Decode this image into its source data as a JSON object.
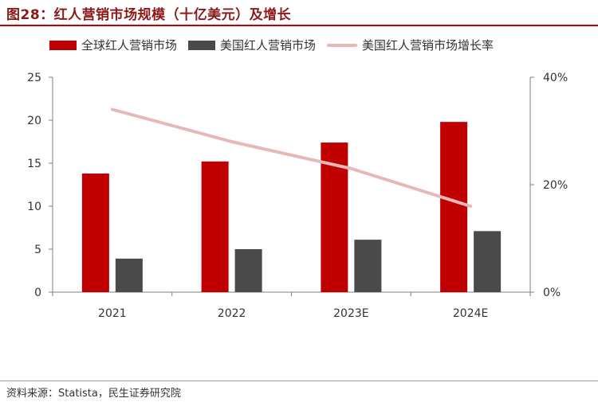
{
  "title": "图28：红人营销市场规模（十亿美元）及增长",
  "source": "资料来源：Statista，民生证券研究院",
  "colors": {
    "global": "#c00000",
    "us": "#4a4a4a",
    "growth": "#e8b8b8",
    "accent": "#c00000"
  },
  "chart_data": {
    "type": "bar",
    "categories": [
      "2021",
      "2022",
      "2023E",
      "2024E"
    ],
    "series": [
      {
        "name": "全球红人营销市场",
        "kind": "bar",
        "axis": "left",
        "values": [
          13.8,
          15.2,
          17.4,
          19.8
        ]
      },
      {
        "name": "美国红人营销市场",
        "kind": "bar",
        "axis": "left",
        "values": [
          3.9,
          5.0,
          6.1,
          7.1
        ]
      },
      {
        "name": "美国红人营销市场增长率",
        "kind": "line",
        "axis": "right",
        "values": [
          0.34,
          0.28,
          0.23,
          0.16
        ]
      }
    ],
    "ylim_left": [
      0,
      25
    ],
    "yticks_left": [
      "0",
      "5",
      "10",
      "15",
      "20",
      "25"
    ],
    "ylim_right": [
      0,
      0.4
    ],
    "yticks_right": [
      "0%",
      "20%",
      "40%"
    ],
    "grid": false,
    "legend_position": "top"
  }
}
